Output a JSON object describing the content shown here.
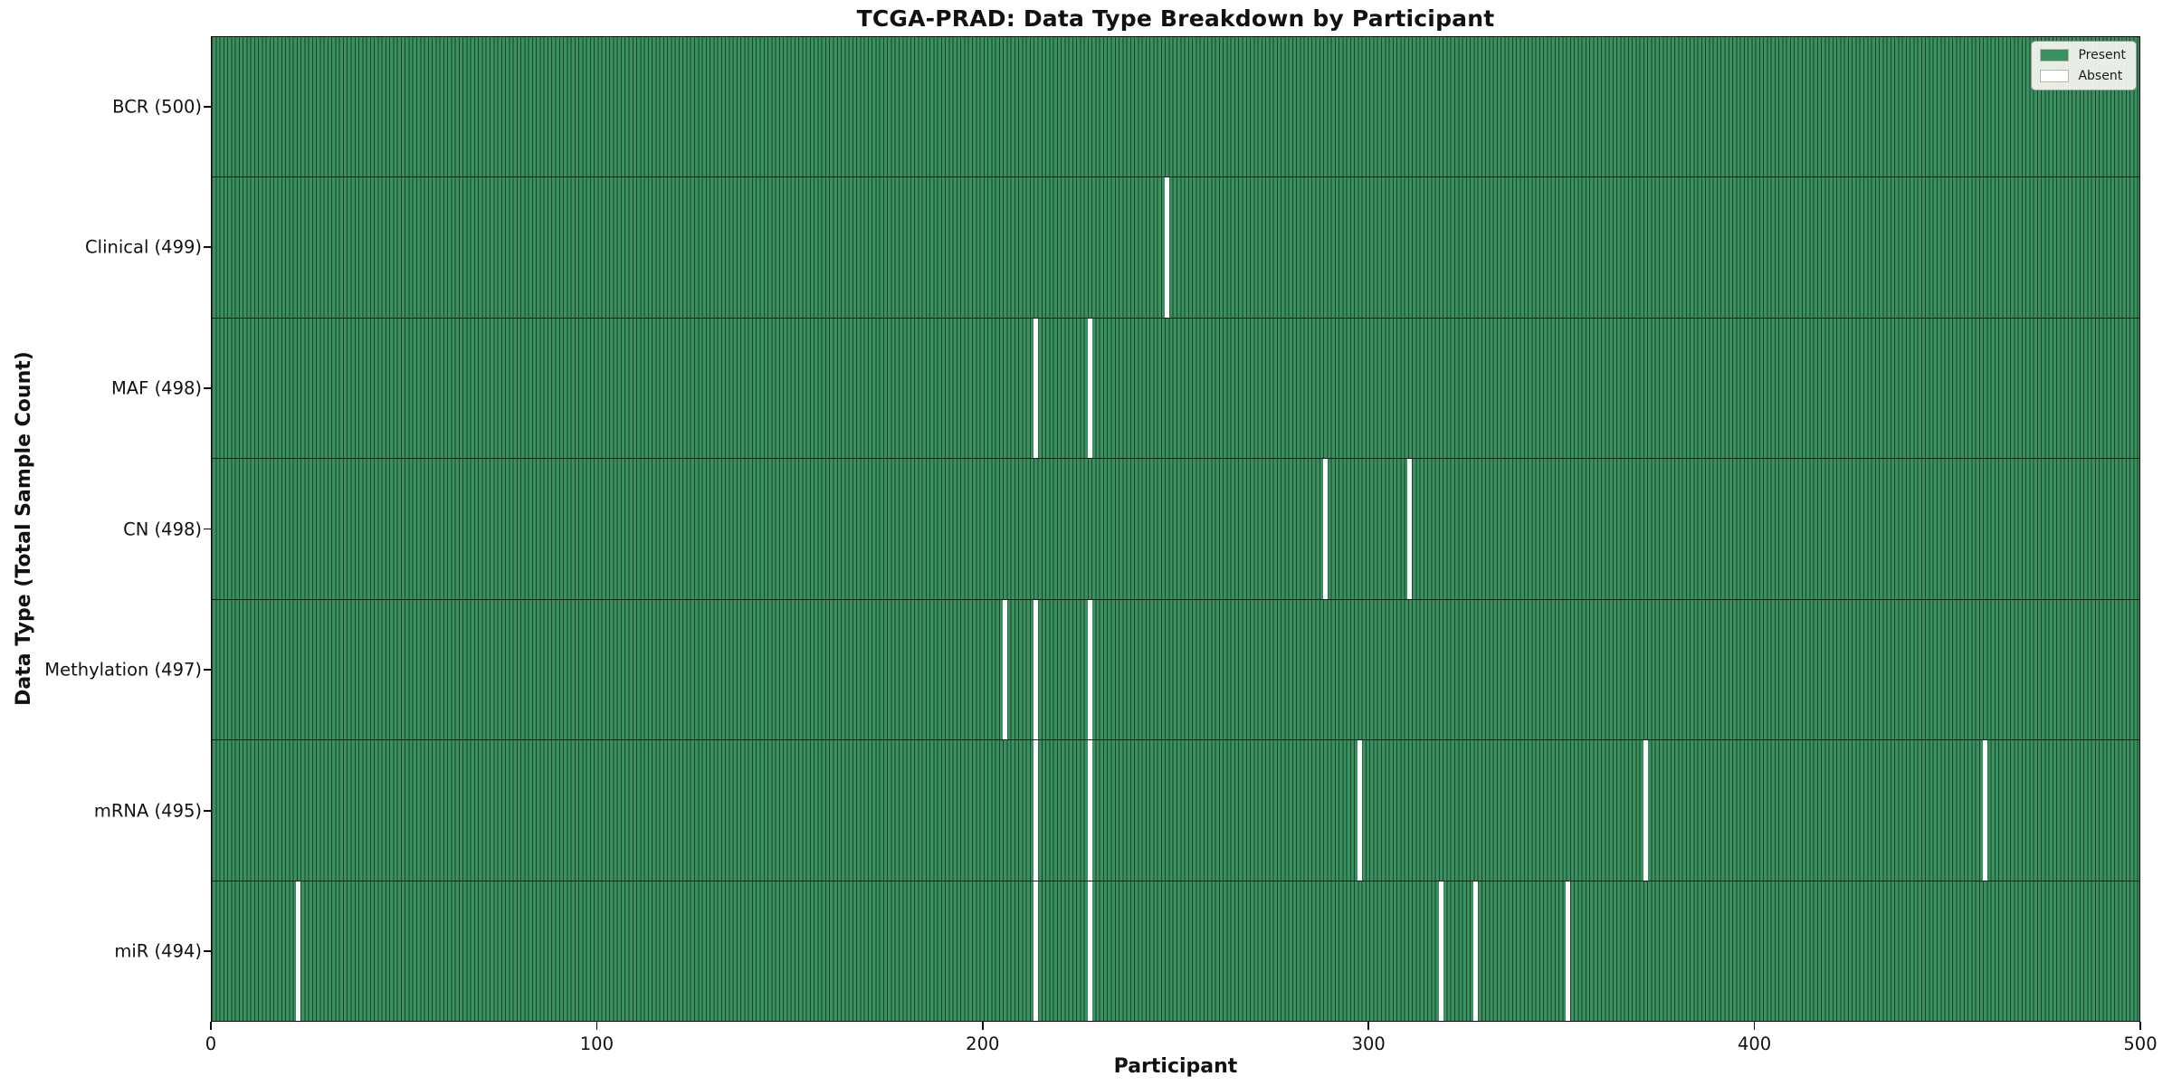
{
  "title": "TCGA-PRAD: Data Type Breakdown by Participant",
  "axes": {
    "xlabel": "Participant",
    "ylabel": "Data Type (Total Sample Count)",
    "x_ticks": [
      0,
      100,
      200,
      300,
      400,
      500
    ],
    "x_range": [
      0,
      500
    ]
  },
  "legend": {
    "items": [
      {
        "label": "Present",
        "color": "#38915E"
      },
      {
        "label": "Absent",
        "color": "#FFFFFF"
      }
    ]
  },
  "colors": {
    "present_fill": "#38915E",
    "present_edge": "#1E402C",
    "absent_fill": "#FFFFFF",
    "row_divider": "#14201a",
    "axis": "#0a0a0a"
  },
  "chart_data": {
    "type": "heatmap",
    "title": "TCGA-PRAD: Data Type Breakdown by Participant",
    "xlabel": "Participant",
    "ylabel": "Data Type (Total Sample Count)",
    "x_range": [
      0,
      500
    ],
    "n_participants": 500,
    "cell_values": "1 = Present (green), 0 = Absent (white)",
    "legend": [
      "Present",
      "Absent"
    ],
    "legend_position": "upper right",
    "rows": [
      {
        "label": "BCR (500)",
        "data_type": "BCR",
        "total": 500,
        "absent_participants": []
      },
      {
        "label": "Clinical (499)",
        "data_type": "Clinical",
        "total": 499,
        "absent_participants": [
          247
        ]
      },
      {
        "label": "MAF (498)",
        "data_type": "MAF",
        "total": 498,
        "absent_participants": [
          213,
          227
        ]
      },
      {
        "label": "CN (498)",
        "data_type": "CN",
        "total": 498,
        "absent_participants": [
          288,
          310
        ]
      },
      {
        "label": "Methylation (497)",
        "data_type": "Methylation",
        "total": 497,
        "absent_participants": [
          205,
          213,
          227
        ]
      },
      {
        "label": "mRNA (495)",
        "data_type": "mRNA",
        "total": 495,
        "absent_participants": [
          213,
          227,
          297,
          371,
          459
        ]
      },
      {
        "label": "miR (494)",
        "data_type": "miR",
        "total": 494,
        "absent_participants": [
          22,
          213,
          227,
          318,
          327,
          351
        ]
      }
    ]
  }
}
